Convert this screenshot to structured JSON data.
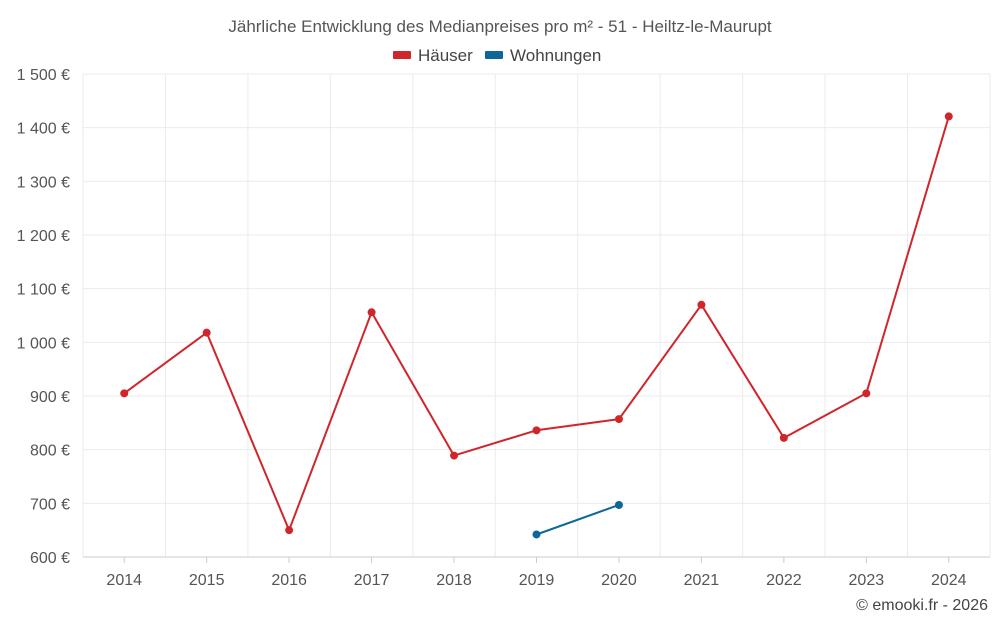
{
  "chart_data": {
    "type": "line",
    "title": "Jährliche Entwicklung des Medianpreises pro m² - 51 - Heiltz-le-Maurupt",
    "x": [
      "2014",
      "2015",
      "2016",
      "2017",
      "2018",
      "2019",
      "2020",
      "2021",
      "2022",
      "2023",
      "2024"
    ],
    "y_ticks": [
      "600 €",
      "700 €",
      "800 €",
      "900 €",
      "1 000 €",
      "1 100 €",
      "1 200 €",
      "1 300 €",
      "1 400 €",
      "1 500 €"
    ],
    "ylim": [
      600,
      1500
    ],
    "grid": true,
    "legend_position": "top-center",
    "series": [
      {
        "name": "Häuser",
        "color": "#d0262b",
        "values": [
          905,
          1018,
          650,
          1056,
          789,
          836,
          857,
          1070,
          822,
          905,
          1421
        ]
      },
      {
        "name": "Wohnungen",
        "color": "#0e6796",
        "values": [
          null,
          null,
          null,
          null,
          null,
          642,
          697,
          null,
          null,
          null,
          null
        ]
      }
    ]
  },
  "credit": "© emooki.fr - 2026"
}
